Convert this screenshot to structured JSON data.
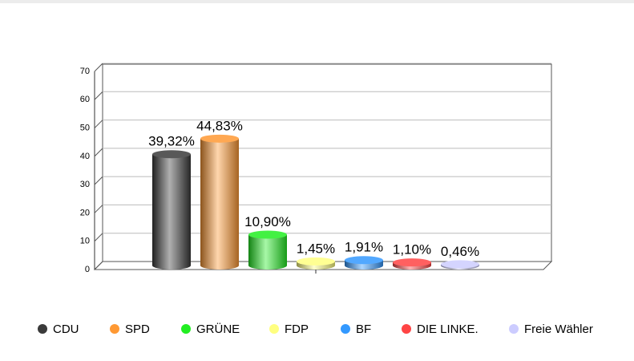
{
  "chart_data": {
    "type": "bar",
    "categories": [
      null
    ],
    "series": [
      {
        "name": "CDU",
        "color": "#3a3a3a",
        "values": [
          39.32
        ],
        "value_labels": [
          "39,32%"
        ]
      },
      {
        "name": "SPD",
        "color": "#ff9933",
        "values": [
          44.83
        ],
        "value_labels": [
          "44,83%"
        ]
      },
      {
        "name": "GRÜNE",
        "color": "#22ee22",
        "values": [
          10.9
        ],
        "value_labels": [
          "10,90%"
        ]
      },
      {
        "name": "FDP",
        "color": "#ffff80",
        "values": [
          1.45
        ],
        "value_labels": [
          "1,45%"
        ]
      },
      {
        "name": "BF",
        "color": "#3399ff",
        "values": [
          1.91
        ],
        "value_labels": [
          "1,91%"
        ]
      },
      {
        "name": "DIE LINKE.",
        "color": "#ff4444",
        "values": [
          1.1
        ],
        "value_labels": [
          "1,10%"
        ]
      },
      {
        "name": "Freie Wähler",
        "color": "#ccccff",
        "values": [
          0.46
        ],
        "value_labels": [
          "0,46%"
        ]
      }
    ],
    "ylim": [
      0,
      70
    ],
    "yticks": [
      0,
      10,
      20,
      30,
      40,
      50,
      60,
      70
    ],
    "grid": true
  }
}
